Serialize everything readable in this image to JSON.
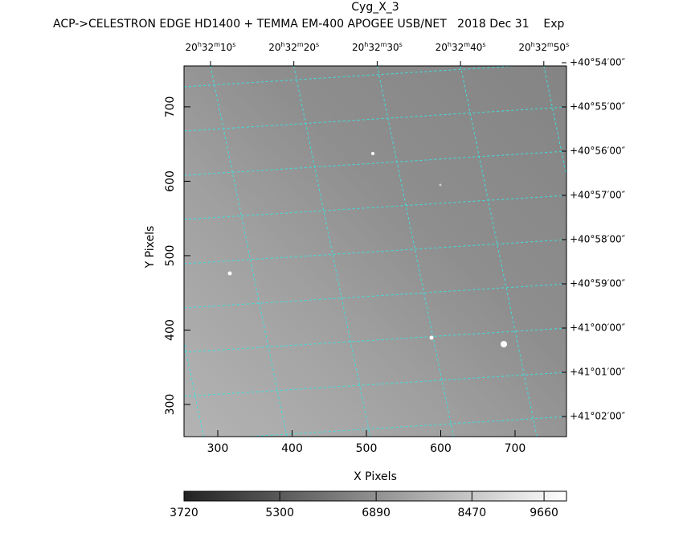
{
  "header": {
    "title": "Cyg_X_3",
    "subtitle": "ACP->CELESTRON EDGE HD1400 + TEMMA EM-400 APOGEE USB/NET   2018 Dec 31    Exp"
  },
  "plot": {
    "x_label": "X Pixels",
    "y_label": "Y Pixels",
    "xlim": [
      254.6,
      769.2
    ],
    "ylim": [
      256.8,
      755
    ],
    "xticks": [
      300,
      400,
      500,
      600,
      700
    ],
    "yticks": [
      300,
      400,
      500,
      600,
      700
    ],
    "ra_ticks": [
      [
        "20",
        "h",
        "32",
        "m",
        "10",
        "s"
      ],
      [
        "20",
        "h",
        "32",
        "m",
        "20",
        "s"
      ],
      [
        "20",
        "h",
        "32",
        "m",
        "30",
        "s"
      ],
      [
        "20",
        "h",
        "32",
        "m",
        "40",
        "s"
      ],
      [
        "20",
        "h",
        "32",
        "m",
        "50",
        "s"
      ]
    ],
    "dec_ticks": [
      "+40°54′00″",
      "+40°55′00″",
      "+40°56′00″",
      "+40°57′00″",
      "+40°58′00″",
      "+40°59′00″",
      "+41°00′00″",
      "+41°01′00″",
      "+41°02′00″"
    ]
  },
  "colorbar": {
    "lim": [
      3720,
      10030
    ],
    "ticks": [
      3720,
      5300,
      6890,
      8470,
      9660
    ]
  }
}
